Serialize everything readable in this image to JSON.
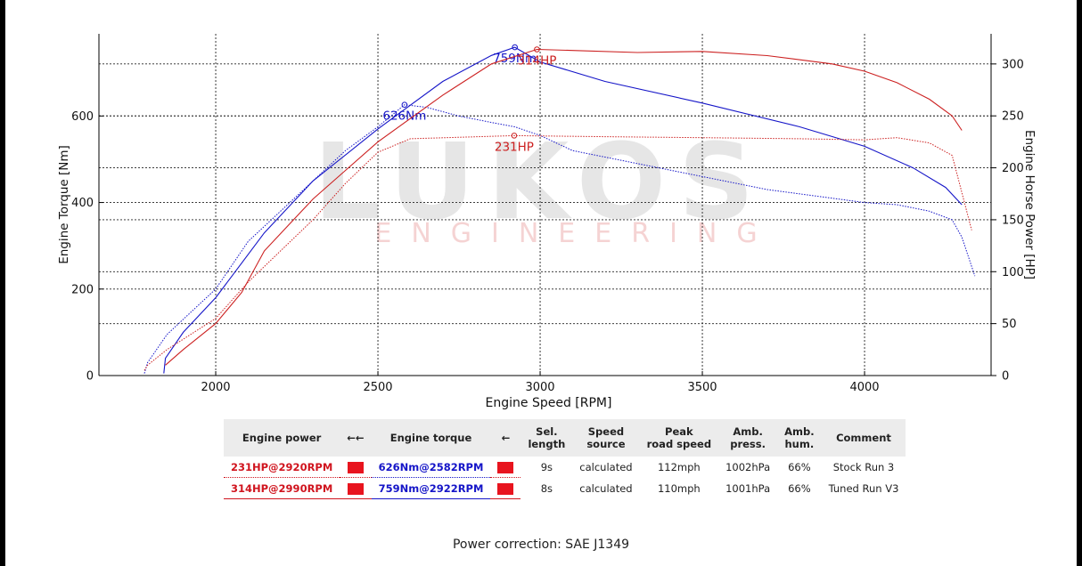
{
  "chart_data": {
    "type": "line",
    "xlabel": "Engine Speed [RPM]",
    "ylabel_left": "Engine Torque [Nm]",
    "ylabel_right": "Engine Horse Power [HP]",
    "xlim": [
      1640,
      4390
    ],
    "ylim_left": [
      0,
      790
    ],
    "ylim_right": [
      0,
      329
    ],
    "x_ticks": [
      2000,
      2500,
      3000,
      3500,
      4000
    ],
    "y_left_ticks": [
      0,
      200,
      400,
      600
    ],
    "y_right_ticks": [
      0,
      50,
      100,
      150,
      200,
      250,
      300
    ],
    "grid": true,
    "watermark": {
      "main": "LUKOS",
      "sub": "ENGINEERING"
    },
    "series": [
      {
        "name": "Stock Run 3 torque",
        "axis": "left",
        "color": "#1515c8",
        "style": "dotted",
        "x": [
          1780,
          1790,
          1850,
          2000,
          2100,
          2200,
          2300,
          2400,
          2500,
          2582,
          2650,
          2750,
          2850,
          2922,
          3000,
          3100,
          3300,
          3500,
          3700,
          3900,
          4000,
          4100,
          4200,
          4270,
          4300,
          4340
        ],
        "y": [
          5,
          30,
          95,
          200,
          310,
          380,
          450,
          520,
          575,
          626,
          620,
          600,
          585,
          575,
          555,
          520,
          490,
          460,
          430,
          410,
          400,
          395,
          380,
          360,
          320,
          230
        ],
        "peak": {
          "x": 2582,
          "y": 626,
          "label": "626Nm"
        }
      },
      {
        "name": "Tuned Run V3 torque",
        "axis": "left",
        "color": "#1515c8",
        "style": "solid",
        "x": [
          1840,
          1845,
          1900,
          2000,
          2080,
          2150,
          2300,
          2500,
          2700,
          2850,
          2922,
          3000,
          3200,
          3500,
          3800,
          4000,
          4150,
          4250,
          4300
        ],
        "y": [
          5,
          40,
          100,
          180,
          260,
          330,
          450,
          570,
          680,
          740,
          759,
          725,
          680,
          630,
          575,
          530,
          480,
          435,
          395
        ],
        "peak": {
          "x": 2922,
          "y": 759,
          "label": "759Nm"
        }
      },
      {
        "name": "Stock Run 3 power",
        "axis": "right",
        "color": "#cc2020",
        "style": "dotted",
        "x": [
          1780,
          1790,
          1850,
          2000,
          2100,
          2200,
          2300,
          2400,
          2500,
          2600,
          2920,
          3200,
          3500,
          3800,
          4000,
          4100,
          4200,
          4270,
          4330
        ],
        "y": [
          5,
          10,
          25,
          55,
          90,
          120,
          150,
          185,
          215,
          228,
          231,
          230,
          229,
          228,
          227,
          229,
          224,
          212,
          140
        ],
        "peak": {
          "x": 2920,
          "y": 231,
          "label": "231HP"
        }
      },
      {
        "name": "Tuned Run V3 power",
        "axis": "right",
        "color": "#cc2020",
        "style": "solid",
        "x": [
          1845,
          1900,
          2000,
          2080,
          2150,
          2300,
          2500,
          2700,
          2850,
          2990,
          3100,
          3300,
          3500,
          3700,
          3900,
          4000,
          4100,
          4200,
          4270,
          4300
        ],
        "y": [
          10,
          25,
          50,
          80,
          120,
          170,
          225,
          270,
          300,
          314,
          313,
          311,
          312,
          308,
          300,
          293,
          282,
          266,
          250,
          236
        ],
        "peak": {
          "x": 2990,
          "y": 314,
          "label": "314HP"
        }
      }
    ]
  },
  "table": {
    "headers": [
      "Engine power",
      "←←",
      "Engine torque",
      "←",
      "Sel.\nlength",
      "Speed\nsource",
      "Peak\nroad speed",
      "Amb.\npress.",
      "Amb.\nhum.",
      "Comment"
    ],
    "rows": [
      {
        "power": "231HP@2920RPM",
        "torque": "626Nm@2582RPM",
        "length": "9s",
        "source": "calculated",
        "speed": "112mph",
        "press": "1002hPa",
        "hum": "66%",
        "comment": "Stock Run 3"
      },
      {
        "power": "314HP@2990RPM",
        "torque": "759Nm@2922RPM",
        "length": "8s",
        "source": "calculated",
        "speed": "110mph",
        "press": "1001hPa",
        "hum": "66%",
        "comment": "Tuned Run V3"
      }
    ]
  },
  "footer": {
    "correction": "Power correction: SAE J1349"
  }
}
